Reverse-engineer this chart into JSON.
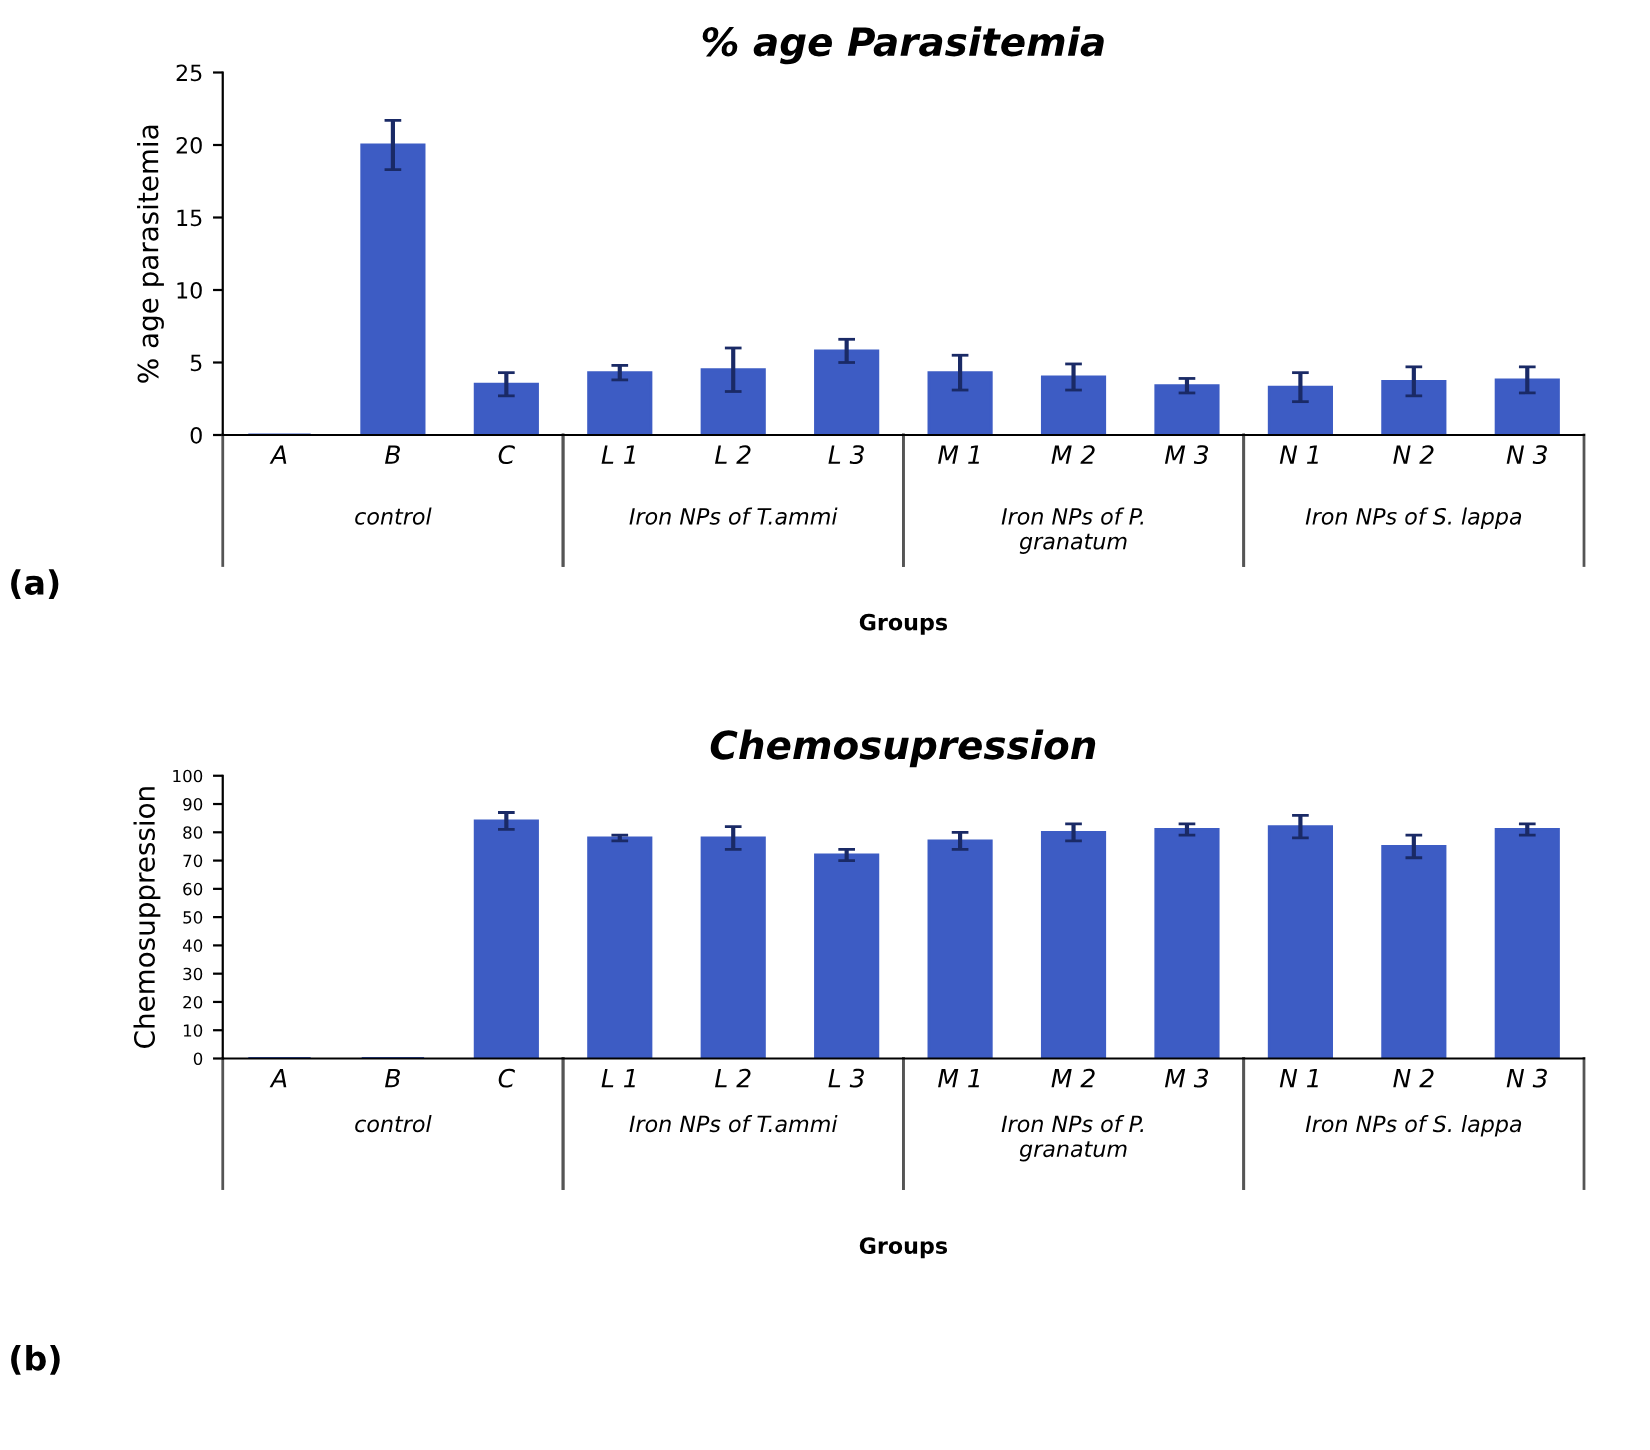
{
  "chart_data": [
    {
      "type": "bar",
      "title": "% age Parasitemia",
      "xlabel": "Groups",
      "ylabel": "% age parasitemia",
      "categories": [
        "A",
        "B",
        "C",
        "L 1",
        "L 2",
        "L 3",
        "M 1",
        "M 2",
        "M 3",
        "N 1",
        "N 2",
        "N 3"
      ],
      "values": [
        0,
        20,
        3.5,
        4.3,
        4.5,
        5.8,
        4.3,
        4.0,
        3.4,
        3.3,
        3.7,
        3.8
      ],
      "errors": [
        null,
        1.7,
        0.8,
        0.5,
        1.5,
        0.8,
        1.2,
        0.9,
        0.5,
        1.0,
        1.0,
        0.9
      ],
      "color": "#3d5cc4",
      "ylim": [
        0,
        25
      ],
      "yticks": [
        0,
        5,
        10,
        15,
        20,
        25
      ],
      "grid": false,
      "legend": false,
      "annotations": [
        "(a)",
        "control",
        "Iron NPs of T.ammi",
        "Iron NPs of P.\ngranatum",
        "Iron NPs of S. lappa"
      ]
    },
    {
      "type": "bar",
      "title": "Chemosupression",
      "xlabel": "Groups",
      "ylabel": "Chemosuppression",
      "categories": [
        "A",
        "B",
        "C",
        "L 1",
        "L 2",
        "L 3",
        "M 1",
        "M 2",
        "M 3",
        "N 1",
        "N 2",
        "N 3"
      ],
      "values": [
        0,
        0,
        84,
        78,
        78,
        72,
        77,
        80,
        81,
        82,
        75,
        81
      ],
      "errors": [
        null,
        null,
        3,
        1,
        4,
        2,
        3,
        3,
        2,
        4,
        4,
        2
      ],
      "color": "#3d5cc4",
      "ylim": [
        0,
        100
      ],
      "yticks": [
        0,
        10,
        20,
        30,
        40,
        50,
        60,
        70,
        80,
        90,
        100
      ],
      "grid": false,
      "legend": false,
      "annotations": [
        "(b)",
        "control",
        "Iron NPs of T.ammi",
        "Iron NPs of P.\ngranatum",
        "Iron NPs of S. lappa"
      ]
    }
  ]
}
